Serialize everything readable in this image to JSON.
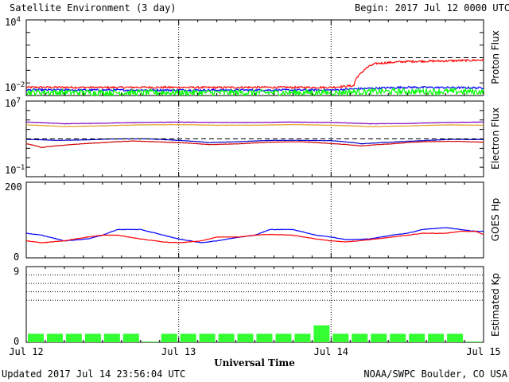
{
  "header": {
    "title": "Satellite Environment (3 day)",
    "begin": "Begin:  2017 Jul 12 0000 UTC"
  },
  "footer": {
    "updated": "Updated 2017 Jul 14 23:56:04 UTC",
    "credit": "NOAA/SWPC Boulder, CO USA"
  },
  "x_axis": {
    "label": "Universal Time",
    "ticks": [
      "Jul 12",
      "Jul 13",
      "Jul 14",
      "Jul 15"
    ]
  },
  "colors": {
    "red": "#ff0000",
    "blue": "#0000ff",
    "green": "#00ff00",
    "purple": "#8000c0",
    "orange": "#e0a020",
    "dark_red": "#d00000",
    "dark_blue": "#0000cc",
    "kp_bar": "#33ff33"
  },
  "chart_data": [
    {
      "type": "line",
      "name": "proton-flux",
      "ylabel": "Proton Flux",
      "yscale": "log",
      "ylim": [
        0.01,
        10000
      ],
      "ytick_labels": [
        "10^4",
        "10^-2"
      ],
      "threshold": 10,
      "x_unit": "days since Jul 12 00 UTC",
      "xlim": [
        0,
        3
      ],
      "series": [
        {
          "color": "red",
          "x": [
            0,
            0.25,
            0.5,
            0.75,
            1.0,
            1.25,
            1.5,
            1.75,
            2.0,
            2.15,
            2.2,
            2.3,
            2.5,
            2.75,
            3.0
          ],
          "y": [
            0.045,
            0.045,
            0.043,
            0.045,
            0.044,
            0.043,
            0.045,
            0.044,
            0.044,
            0.06,
            0.6,
            3.5,
            5.0,
            5.5,
            6.5
          ],
          "noise": 0.02
        },
        {
          "color": "blue",
          "x": [
            0,
            0.5,
            1.0,
            1.5,
            2.0,
            2.2,
            2.5,
            3.0
          ],
          "y": [
            0.028,
            0.027,
            0.027,
            0.027,
            0.027,
            0.035,
            0.045,
            0.04
          ],
          "noise": 0.02
        },
        {
          "color": "green",
          "x": [
            0,
            0.5,
            1.0,
            1.5,
            2.0,
            2.2,
            2.5,
            3.0
          ],
          "y": [
            0.018,
            0.017,
            0.017,
            0.017,
            0.017,
            0.02,
            0.021,
            0.02
          ],
          "noise": 0.06
        }
      ]
    },
    {
      "type": "line",
      "name": "electron-flux",
      "ylabel": "Electron Flux",
      "yscale": "log",
      "ylim": [
        0.1,
        10000000
      ],
      "ytick_labels": [
        "10^7",
        "10^-1"
      ],
      "threshold": 1000,
      "x_unit": "days since Jul 12 00 UTC",
      "xlim": [
        0,
        3
      ],
      "series": [
        {
          "color": "purple",
          "x": [
            0,
            0.25,
            0.5,
            0.75,
            1.0,
            1.25,
            1.5,
            1.75,
            2.0,
            2.25,
            2.5,
            2.75,
            3.0
          ],
          "y": [
            60000,
            40000,
            45000,
            55000,
            60000,
            55000,
            55000,
            60000,
            55000,
            40000,
            42000,
            55000,
            60000
          ]
        },
        {
          "color": "orange",
          "x": [
            0,
            0.25,
            0.5,
            0.75,
            1.0,
            1.25,
            1.5,
            1.75,
            2.0,
            2.25,
            2.5,
            2.75,
            3.0
          ],
          "y": [
            30000,
            20000,
            24000,
            30000,
            32000,
            28000,
            28000,
            32000,
            28000,
            20000,
            23000,
            30000,
            28000
          ]
        },
        {
          "color": "dark_blue",
          "x": [
            0,
            0.2,
            0.4,
            0.6,
            0.8,
            1.0,
            1.2,
            1.4,
            1.6,
            1.8,
            2.0,
            2.2,
            2.4,
            2.6,
            2.8,
            3.0
          ],
          "y": [
            900,
            700,
            800,
            1000,
            1000,
            700,
            400,
            500,
            700,
            700,
            650,
            300,
            450,
            650,
            900,
            850
          ]
        },
        {
          "color": "dark_red",
          "x": [
            0,
            0.1,
            0.3,
            0.5,
            0.7,
            0.9,
            1.0,
            1.2,
            1.4,
            1.6,
            1.8,
            2.0,
            2.2,
            2.4,
            2.6,
            2.8,
            3.0
          ],
          "y": [
            300,
            120,
            250,
            400,
            600,
            450,
            400,
            250,
            300,
            450,
            500,
            320,
            180,
            300,
            500,
            550,
            450
          ]
        }
      ]
    },
    {
      "type": "line",
      "name": "goes-hp",
      "ylabel": "GOES Hp",
      "yscale": "linear",
      "ylim": [
        0,
        200
      ],
      "ytick_labels": [
        "200",
        "0"
      ],
      "x_unit": "days since Jul 12 00 UTC",
      "xlim": [
        0,
        3
      ],
      "series": [
        {
          "color": "blue",
          "x": [
            0,
            0.1,
            0.25,
            0.4,
            0.5,
            0.6,
            0.75,
            0.9,
            1.0,
            1.15,
            1.25,
            1.4,
            1.5,
            1.6,
            1.75,
            1.9,
            2.0,
            2.1,
            2.25,
            2.4,
            2.5,
            2.6,
            2.75,
            2.85,
            2.95,
            3.0
          ],
          "y": [
            65,
            60,
            45,
            50,
            60,
            75,
            75,
            60,
            50,
            40,
            45,
            55,
            60,
            75,
            75,
            60,
            55,
            48,
            50,
            60,
            65,
            75,
            80,
            75,
            70,
            70
          ]
        },
        {
          "color": "red",
          "x": [
            0,
            0.1,
            0.25,
            0.4,
            0.5,
            0.6,
            0.75,
            0.9,
            1.0,
            1.15,
            1.25,
            1.4,
            1.5,
            1.6,
            1.75,
            1.9,
            2.0,
            2.1,
            2.25,
            2.4,
            2.5,
            2.6,
            2.75,
            2.85,
            2.95,
            3.0
          ],
          "y": [
            45,
            40,
            45,
            55,
            60,
            60,
            50,
            42,
            40,
            45,
            55,
            55,
            60,
            62,
            60,
            50,
            45,
            42,
            48,
            55,
            60,
            65,
            65,
            70,
            70,
            62
          ]
        }
      ]
    },
    {
      "type": "bar",
      "name": "estimated-kp",
      "ylabel": "Estimated Kp",
      "ylim": [
        0,
        9
      ],
      "ytick_labels": [
        "9",
        "0"
      ],
      "grid_levels": [
        5,
        6,
        7,
        8,
        9
      ],
      "bar_hours": 3,
      "values": [
        1,
        1,
        1,
        1,
        1,
        1,
        0,
        1,
        1,
        1,
        1,
        1,
        1,
        1,
        1,
        2,
        1,
        1,
        1,
        1,
        1,
        1,
        1,
        0
      ]
    }
  ]
}
